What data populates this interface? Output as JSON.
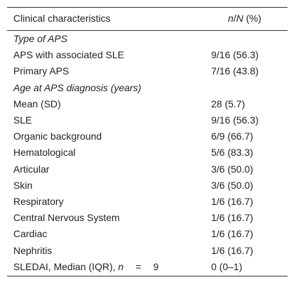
{
  "table": {
    "header": {
      "characteristic": "Clinical characteristics",
      "n_letter": "n",
      "slash": "/",
      "N_letter": "N",
      "pct": " (%)"
    },
    "rows": [
      {
        "type": "section",
        "label": "Type of APS",
        "value": ""
      },
      {
        "type": "row",
        "label": "APS with associated SLE",
        "value": "9/16 (56.3)"
      },
      {
        "type": "row",
        "label": "Primary APS",
        "value": "7/16 (43.8)"
      },
      {
        "type": "section",
        "label": "Age at APS diagnosis (years)",
        "value": ""
      },
      {
        "type": "row",
        "label": "Mean (SD)",
        "value": "28 (5.7)"
      },
      {
        "type": "row",
        "label": "SLE",
        "value": "9/16 (56.3)"
      },
      {
        "type": "row",
        "label": "Organic background",
        "value": "6/9 (66.7)"
      },
      {
        "type": "row",
        "label": "Hematological",
        "value": "5/6 (83.3)"
      },
      {
        "type": "row",
        "label": "Articular",
        "value": "3/6 (50.0)"
      },
      {
        "type": "row",
        "label": "Skin",
        "value": "3/6 (50.0)"
      },
      {
        "type": "row",
        "label": "Respiratory",
        "value": "1/6 (16.7)"
      },
      {
        "type": "row",
        "label": "Central Nervous System",
        "value": "1/6 (16.7)"
      },
      {
        "type": "row",
        "label": "Cardiac",
        "value": "1/6 (16.7)"
      },
      {
        "type": "row",
        "label": "Nephritis",
        "value": "1/6 (16.7)"
      }
    ],
    "last_row": {
      "label_prefix": "SLEDAI, Median (IQR), ",
      "n_letter": "n",
      "equals": "=",
      "n_value": "9",
      "value": "0 (0–1)"
    }
  }
}
